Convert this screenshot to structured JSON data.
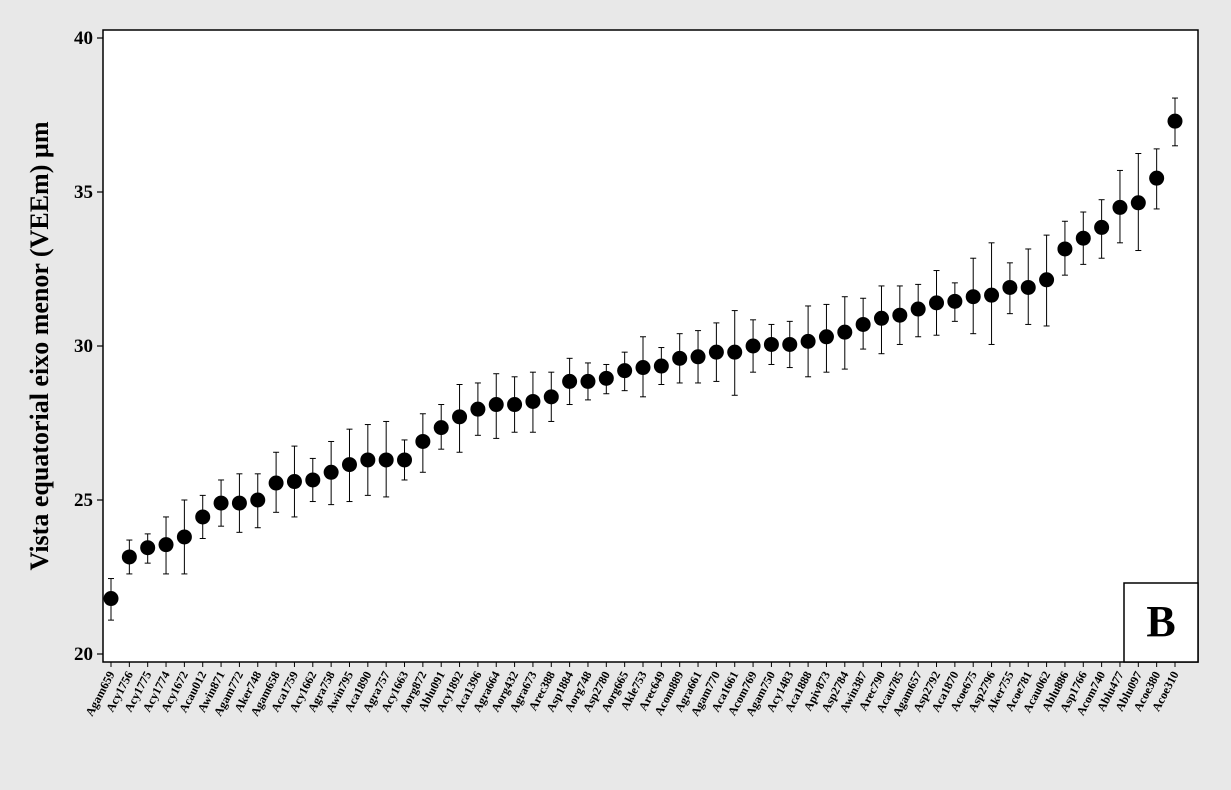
{
  "chart_data": {
    "type": "scatter",
    "ylabel": "Vista equatorial eixo menor (VEEm) µm",
    "ylim": [
      20,
      40
    ],
    "yticks": [
      20,
      25,
      30,
      35,
      40
    ],
    "panel_label": "B",
    "grid": false,
    "marker_color": "#000000",
    "categories": [
      "Agam659",
      "Acy1756",
      "Acy1775",
      "Acy1774",
      "Acy1672",
      "Acau012",
      "Awin871",
      "Agam772",
      "Aker748",
      "Agam658",
      "Aca1759",
      "Acy1662",
      "Agra758",
      "Awin795",
      "Aca1890",
      "Agra757",
      "Acy1663",
      "Aorg872",
      "Ablu091",
      "Acy1892",
      "Aca1396",
      "Agra664",
      "Aorg432",
      "Agra673",
      "Arec388",
      "Asp1884",
      "Aorg748",
      "Asp2780",
      "Aorg665",
      "Akle753",
      "Arec649",
      "Acom889",
      "Agra661",
      "Agam770",
      "Aca1661",
      "Acom769",
      "Agam750",
      "Acy1483",
      "Aca1888",
      "Apiv873",
      "Asp2784",
      "Awin387",
      "Arec790",
      "Acau785",
      "Agam657",
      "Asp2792",
      "Aca1870",
      "Acoe675",
      "Asp2796",
      "Aker755",
      "Acoe781",
      "Acau062",
      "Ablu886",
      "Asp1766",
      "Acom740",
      "Ablu477",
      "Ablu097",
      "Acoe380",
      "Acoe310"
    ],
    "series": [
      {
        "means": [
          21.8,
          23.15,
          23.45,
          23.55,
          23.8,
          24.45,
          24.9,
          24.9,
          25.0,
          25.55,
          25.6,
          25.65,
          25.9,
          26.15,
          26.3,
          26.3,
          26.3,
          26.9,
          27.35,
          27.7,
          27.95,
          28.1,
          28.1,
          28.2,
          28.35,
          28.85,
          28.85,
          28.95,
          29.2,
          29.3,
          29.35,
          29.6,
          29.65,
          29.8,
          29.8,
          30.0,
          30.05,
          30.05,
          30.15,
          30.3,
          30.45,
          30.7,
          30.9,
          31.0,
          31.2,
          31.4,
          31.45,
          31.6,
          31.65,
          31.9,
          31.9,
          32.15,
          33.15,
          33.5,
          33.85,
          34.5,
          34.65,
          35.45,
          37.3
        ],
        "lower": [
          21.1,
          22.6,
          22.95,
          22.6,
          22.6,
          23.75,
          24.15,
          23.95,
          24.1,
          24.6,
          24.45,
          24.95,
          24.85,
          24.95,
          25.15,
          25.1,
          25.65,
          25.9,
          26.65,
          26.55,
          27.1,
          27.0,
          27.2,
          27.2,
          27.55,
          28.1,
          28.25,
          28.45,
          28.55,
          28.35,
          28.75,
          28.8,
          28.8,
          28.85,
          28.4,
          29.15,
          29.4,
          29.3,
          29.0,
          29.15,
          29.25,
          29.9,
          29.75,
          30.05,
          30.3,
          30.35,
          30.8,
          30.4,
          30.05,
          31.05,
          30.7,
          30.65,
          32.3,
          32.65,
          32.85,
          33.35,
          33.1,
          34.45,
          36.5
        ],
        "upper": [
          22.45,
          23.7,
          23.9,
          24.45,
          25.0,
          25.15,
          25.65,
          25.85,
          25.85,
          26.55,
          26.75,
          26.35,
          26.9,
          27.3,
          27.45,
          27.55,
          26.95,
          27.8,
          28.1,
          28.75,
          28.8,
          29.1,
          29.0,
          29.15,
          29.15,
          29.6,
          29.45,
          29.4,
          29.8,
          30.3,
          29.95,
          30.4,
          30.5,
          30.75,
          31.15,
          30.85,
          30.7,
          30.8,
          31.3,
          31.35,
          31.6,
          31.55,
          31.95,
          31.95,
          32.0,
          32.45,
          32.05,
          32.85,
          33.35,
          32.7,
          33.15,
          33.6,
          34.05,
          34.35,
          34.75,
          35.7,
          36.25,
          36.4,
          38.05
        ]
      }
    ]
  }
}
